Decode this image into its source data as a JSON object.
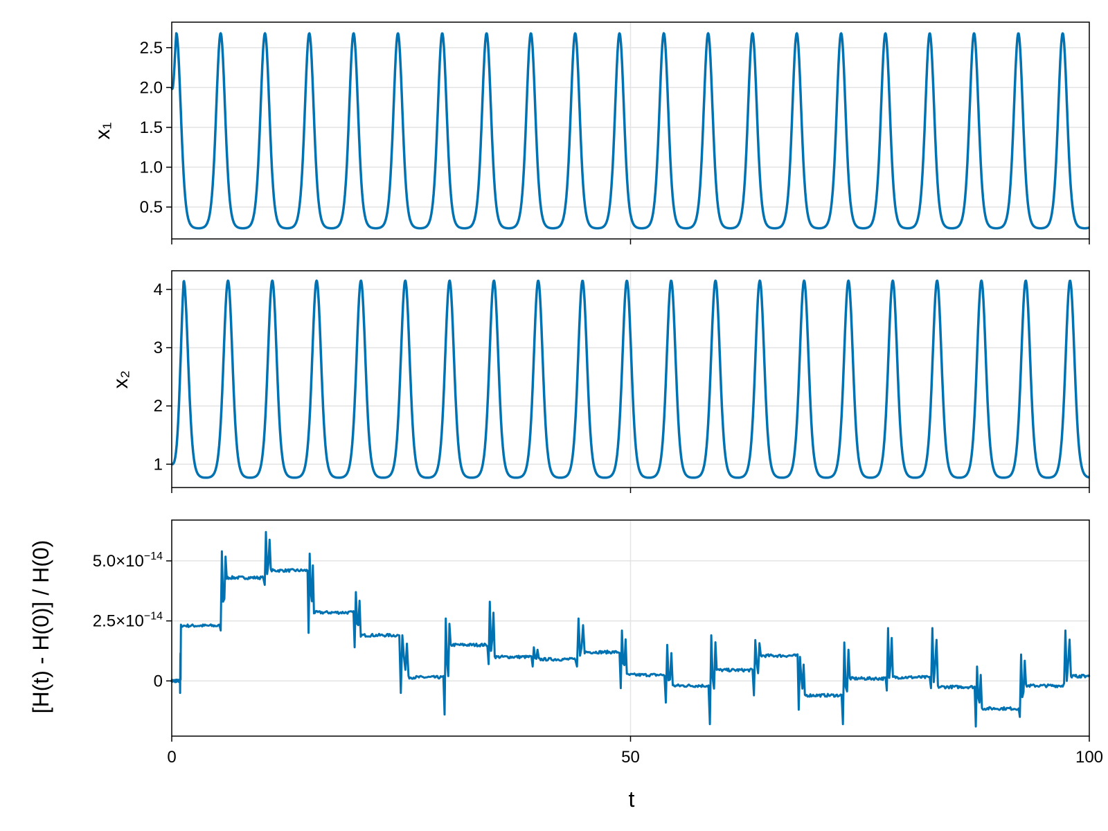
{
  "chart_data": [
    {
      "type": "line",
      "panel": "x1",
      "ylabel": "x₁",
      "xlabel": "",
      "xlim": [
        0,
        100
      ],
      "ylim": [
        0.1,
        2.82
      ],
      "yticks": [
        0.5,
        1.0,
        1.5,
        2.0,
        2.5
      ],
      "ytick_labels": [
        "0.5",
        "1.0",
        "1.5",
        "2.0",
        "2.5"
      ],
      "xticks": [
        0,
        50,
        100
      ],
      "grid": true,
      "color": "#0072b2",
      "oscillation": {
        "period": 4.83,
        "start_value": 2.0,
        "peak_value": 2.68,
        "trough_value": 0.22,
        "peaks_t": [
          0.5,
          5.3,
          10.1,
          15.0,
          19.8,
          24.7,
          29.5,
          34.3,
          39.2,
          44.0,
          48.8,
          53.7,
          58.5,
          63.3,
          68.1,
          73.0,
          77.8,
          82.6,
          87.5,
          92.3,
          97.1
        ],
        "end_value": 0.35
      }
    },
    {
      "type": "line",
      "panel": "x2",
      "ylabel": "x₂",
      "xlabel": "",
      "xlim": [
        0,
        100
      ],
      "ylim": [
        0.6,
        4.32
      ],
      "yticks": [
        1,
        2,
        3,
        4
      ],
      "ytick_labels": [
        "1",
        "2",
        "3",
        "4"
      ],
      "xticks": [
        0,
        50,
        100
      ],
      "grid": true,
      "color": "#0072b2",
      "oscillation": {
        "period": 4.83,
        "start_value": 1.0,
        "peak_value": 4.15,
        "trough_value": 0.75,
        "peaks_t": [
          1.3,
          6.2,
          11.0,
          15.8,
          20.7,
          25.5,
          30.3,
          35.2,
          40.0,
          44.8,
          49.7,
          54.5,
          59.3,
          64.1,
          69.0,
          73.8,
          78.6,
          83.5,
          88.3,
          93.1,
          98.0
        ],
        "end_value": 1.1
      }
    },
    {
      "type": "line",
      "panel": "energy-error",
      "ylabel": "[H(t) - H(0)] / H(0)",
      "xlabel": "t",
      "xlim": [
        0,
        100
      ],
      "ylim": [
        -2.3e-14,
        6.7e-14
      ],
      "yticks": [
        0,
        2.5e-14,
        5e-14
      ],
      "ytick_labels": [
        "0",
        "2.5×10",
        "5.0×10"
      ],
      "ytick_exponent": "−14",
      "xticks": [
        0,
        50,
        100
      ],
      "xtick_labels": [
        "0",
        "50",
        "100"
      ],
      "grid": true,
      "color": "#0072b2",
      "plateaus": [
        {
          "t": [
            0.0,
            0.9
          ],
          "y": 0.0
        },
        {
          "t": [
            1.0,
            5.2
          ],
          "y": 2.3e-14
        },
        {
          "t": [
            6.0,
            10.0
          ],
          "y": 4.3e-14
        },
        {
          "t": [
            10.8,
            14.8
          ],
          "y": 4.6e-14
        },
        {
          "t": [
            15.5,
            19.8
          ],
          "y": 2.85e-14
        },
        {
          "t": [
            20.6,
            24.8
          ],
          "y": 1.9e-14
        },
        {
          "t": [
            25.8,
            29.6
          ],
          "y": 1.5e-15
        },
        {
          "t": [
            30.4,
            34.4
          ],
          "y": 1.5e-14
        },
        {
          "t": [
            35.2,
            39.2
          ],
          "y": 1e-14
        },
        {
          "t": [
            40.0,
            44.0
          ],
          "y": 9e-15
        },
        {
          "t": [
            45.0,
            48.8
          ],
          "y": 1.2e-14
        },
        {
          "t": [
            49.6,
            53.7
          ],
          "y": 2.5e-15
        },
        {
          "t": [
            54.6,
            58.5
          ],
          "y": -2e-15
        },
        {
          "t": [
            59.4,
            63.3
          ],
          "y": 4.5e-15
        },
        {
          "t": [
            64.2,
            68.2
          ],
          "y": 1.05e-14
        },
        {
          "t": [
            69.0,
            73.0
          ],
          "y": -6e-15
        },
        {
          "t": [
            73.9,
            77.8
          ],
          "y": 1e-15
        },
        {
          "t": [
            78.6,
            82.6
          ],
          "y": 1.5e-15
        },
        {
          "t": [
            83.5,
            87.5
          ],
          "y": -2.5e-15
        },
        {
          "t": [
            88.3,
            92.3
          ],
          "y": -1.15e-14
        },
        {
          "t": [
            93.1,
            97.1
          ],
          "y": -2e-15
        },
        {
          "t": [
            98.0,
            100.0
          ],
          "y": 2e-15
        }
      ],
      "spikes": [
        {
          "t": 0.6,
          "hi": 9e-15,
          "lo": -5e-15
        },
        {
          "t": 5.6,
          "hi": 5.4e-14,
          "lo": 2.1e-14
        },
        {
          "t": 10.3,
          "hi": 6.2e-14,
          "lo": 4e-14
        },
        {
          "t": 15.1,
          "hi": 5.3e-14,
          "lo": 2e-14
        },
        {
          "t": 20.1,
          "hi": 3.7e-14,
          "lo": 1.4e-14
        },
        {
          "t": 25.0,
          "hi": 1.9e-14,
          "lo": -5e-15
        },
        {
          "t": 29.8,
          "hi": 2.6e-14,
          "lo": -1.4e-14
        },
        {
          "t": 34.6,
          "hi": 3.3e-14,
          "lo": 7e-15
        },
        {
          "t": 39.5,
          "hi": 1.4e-14,
          "lo": 6e-15
        },
        {
          "t": 44.3,
          "hi": 2.6e-14,
          "lo": 6e-15
        },
        {
          "t": 49.1,
          "hi": 2.1e-14,
          "lo": -3e-15
        },
        {
          "t": 54.0,
          "hi": 1.5e-14,
          "lo": -9e-15
        },
        {
          "t": 58.8,
          "hi": 1.9e-14,
          "lo": -1.8e-14
        },
        {
          "t": 63.7,
          "hi": 1.7e-14,
          "lo": -6e-15
        },
        {
          "t": 68.5,
          "hi": 1e-14,
          "lo": -1.2e-14
        },
        {
          "t": 73.3,
          "hi": 1.6e-14,
          "lo": -1.8e-14
        },
        {
          "t": 78.1,
          "hi": 2.2e-14,
          "lo": -4e-15
        },
        {
          "t": 83.0,
          "hi": 2.2e-14,
          "lo": -3e-15
        },
        {
          "t": 87.8,
          "hi": 6e-15,
          "lo": -1.9e-14
        },
        {
          "t": 92.6,
          "hi": 1.1e-14,
          "lo": -1.5e-14
        },
        {
          "t": 97.4,
          "hi": 2.1e-14,
          "lo": -1e-15
        }
      ]
    }
  ]
}
